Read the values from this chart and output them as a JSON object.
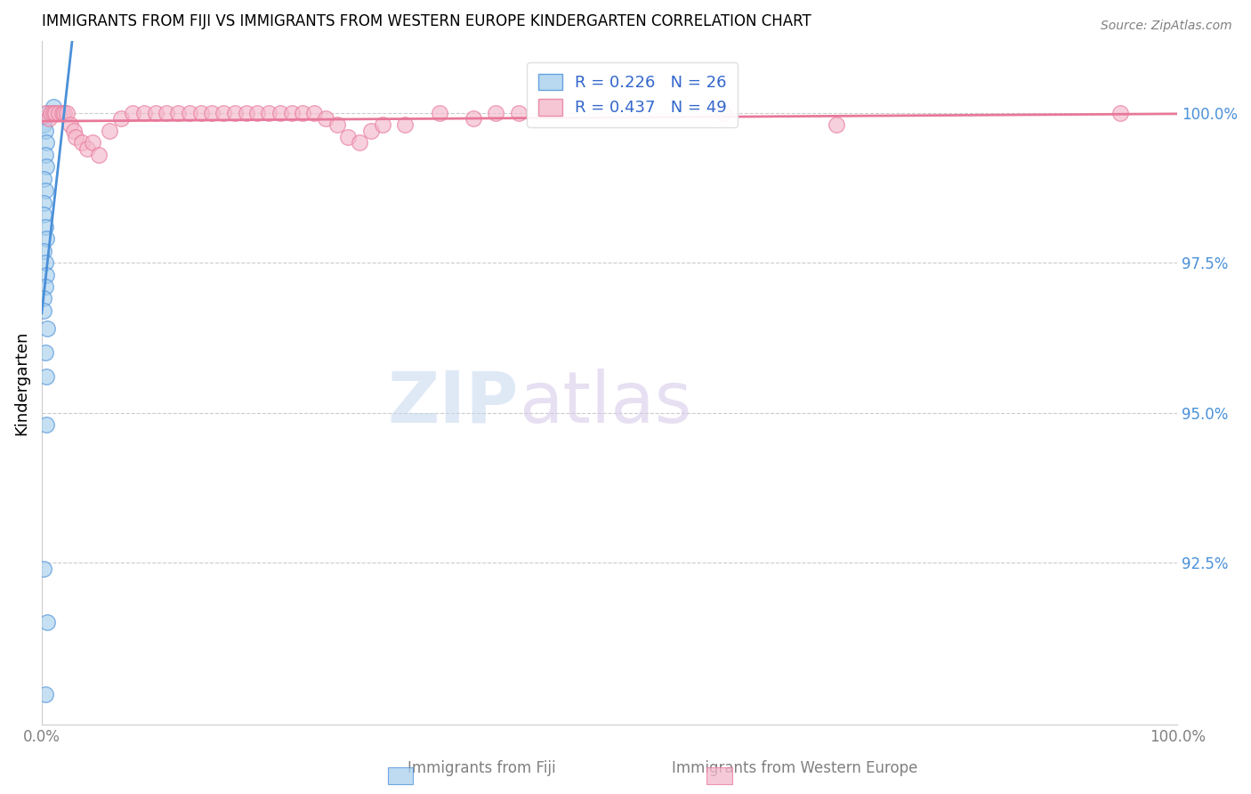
{
  "title": "IMMIGRANTS FROM FIJI VS IMMIGRANTS FROM WESTERN EUROPE KINDERGARTEN CORRELATION CHART",
  "source": "Source: ZipAtlas.com",
  "ylabel": "Kindergarten",
  "yticks": [
    92.5,
    95.0,
    97.5,
    100.0
  ],
  "ytick_labels": [
    "92.5%",
    "95.0%",
    "97.5%",
    "100.0%"
  ],
  "xlim": [
    0.0,
    1.0
  ],
  "ylim": [
    89.8,
    101.2
  ],
  "fiji_R": 0.226,
  "fiji_N": 26,
  "we_R": 0.437,
  "we_N": 49,
  "fiji_color": "#a8d0ee",
  "we_color": "#f4b8cb",
  "fiji_line_color": "#4a90d9",
  "we_line_color": "#e8789a",
  "watermark_zip": "ZIP",
  "watermark_atlas": "atlas",
  "fiji_x": [
    0.005,
    0.01,
    0.002,
    0.003,
    0.004,
    0.003,
    0.004,
    0.002,
    0.003,
    0.002,
    0.002,
    0.003,
    0.004,
    0.002,
    0.003,
    0.004,
    0.003,
    0.002,
    0.002,
    0.005,
    0.003,
    0.004,
    0.004,
    0.002,
    0.005,
    0.003
  ],
  "fiji_y": [
    100.0,
    100.1,
    99.8,
    99.7,
    99.5,
    99.3,
    99.1,
    98.9,
    98.7,
    98.5,
    98.3,
    98.1,
    97.9,
    97.7,
    97.5,
    97.3,
    97.1,
    96.9,
    96.7,
    96.4,
    96.0,
    95.6,
    94.8,
    92.4,
    91.5,
    90.3
  ],
  "we_x": [
    0.003,
    0.006,
    0.008,
    0.01,
    0.012,
    0.015,
    0.018,
    0.02,
    0.022,
    0.025,
    0.028,
    0.03,
    0.035,
    0.04,
    0.045,
    0.05,
    0.06,
    0.07,
    0.08,
    0.09,
    0.1,
    0.11,
    0.12,
    0.13,
    0.14,
    0.15,
    0.16,
    0.17,
    0.18,
    0.19,
    0.2,
    0.21,
    0.22,
    0.23,
    0.24,
    0.25,
    0.26,
    0.27,
    0.28,
    0.29,
    0.3,
    0.32,
    0.35,
    0.38,
    0.4,
    0.42,
    0.6,
    0.7,
    0.95
  ],
  "we_y": [
    100.0,
    99.9,
    100.0,
    100.0,
    100.0,
    100.0,
    100.0,
    100.0,
    100.0,
    99.8,
    99.7,
    99.6,
    99.5,
    99.4,
    99.5,
    99.3,
    99.7,
    99.9,
    100.0,
    100.0,
    100.0,
    100.0,
    100.0,
    100.0,
    100.0,
    100.0,
    100.0,
    100.0,
    100.0,
    100.0,
    100.0,
    100.0,
    100.0,
    100.0,
    100.0,
    99.9,
    99.8,
    99.6,
    99.5,
    99.7,
    99.8,
    99.8,
    100.0,
    99.9,
    100.0,
    100.0,
    100.0,
    99.8,
    100.0
  ],
  "xtick_positions": [
    0.0,
    0.2,
    0.4,
    0.6,
    0.8,
    1.0
  ],
  "xtick_labels": [
    "0.0%",
    "",
    "",
    "",
    "",
    "100.0%"
  ]
}
